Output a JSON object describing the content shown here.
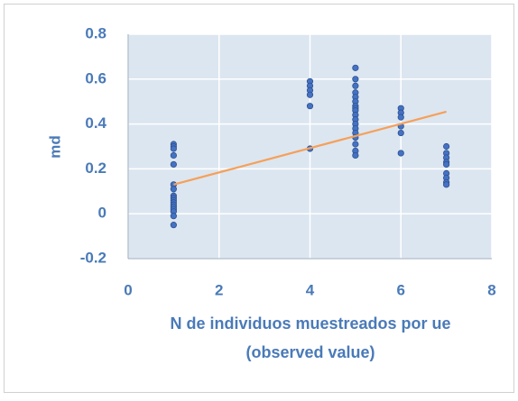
{
  "chart_data": {
    "type": "scatter",
    "ylabel": "md",
    "xlabel": [
      "N de individuos muestreados por ue",
      "(observed value)"
    ],
    "x": [
      1,
      1,
      1,
      1,
      1,
      1,
      1,
      1,
      1,
      1,
      1,
      1,
      1,
      1,
      1,
      1,
      1,
      4,
      4,
      4,
      4,
      4,
      4,
      5,
      5,
      5,
      5,
      5,
      5,
      5,
      5,
      5,
      5,
      5,
      5,
      5,
      5,
      5,
      5,
      5,
      5,
      6,
      6,
      6,
      6,
      6,
      6,
      7,
      7,
      7,
      7,
      7,
      7,
      7,
      7,
      7
    ],
    "values": [
      0.31,
      0.3,
      0.29,
      0.26,
      0.22,
      0.13,
      0.11,
      0.08,
      0.07,
      0.06,
      0.05,
      0.04,
      0.03,
      0.02,
      0.01,
      -0.01,
      -0.05,
      0.59,
      0.57,
      0.55,
      0.53,
      0.48,
      0.29,
      0.65,
      0.6,
      0.57,
      0.54,
      0.52,
      0.5,
      0.48,
      0.47,
      0.46,
      0.44,
      0.42,
      0.4,
      0.38,
      0.36,
      0.34,
      0.31,
      0.28,
      0.26,
      0.47,
      0.45,
      0.43,
      0.39,
      0.36,
      0.27,
      0.3,
      0.27,
      0.25,
      0.23,
      0.22,
      0.18,
      0.16,
      0.14,
      0.13
    ],
    "color": "#4472c4",
    "trendline": {
      "x": [
        1,
        7
      ],
      "values": [
        0.13,
        0.455
      ],
      "color": "#f5a05a"
    },
    "xlim": [
      0,
      8
    ],
    "xticks": [
      0,
      2,
      4,
      6,
      8
    ],
    "ylim": [
      -0.2,
      0.8
    ],
    "yticks": [
      0.8,
      0.6,
      0.4,
      0.2,
      0,
      -0.2
    ],
    "grid": true
  }
}
